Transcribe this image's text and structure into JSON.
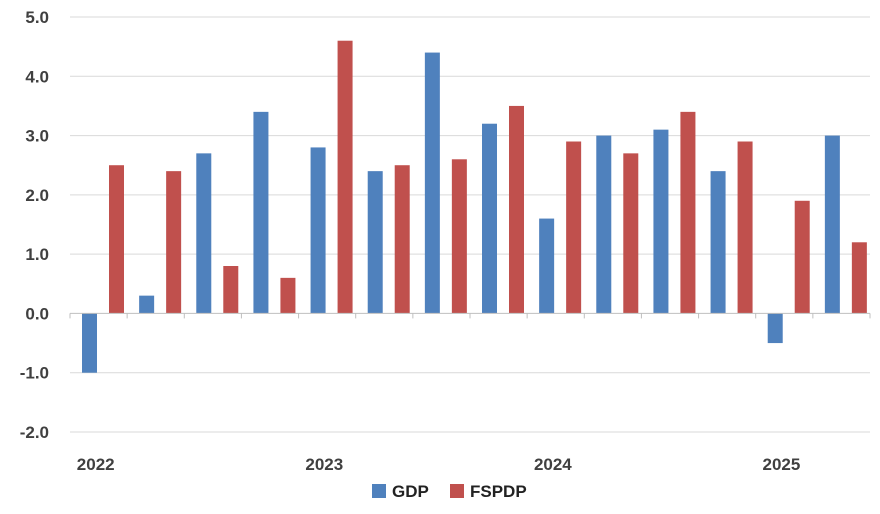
{
  "chart_data": {
    "type": "bar",
    "categories": [
      "2022 Q1",
      "2022 Q2",
      "2022 Q3",
      "2022 Q4",
      "2023 Q1",
      "2023 Q2",
      "2023 Q3",
      "2023 Q4",
      "2024 Q1",
      "2024 Q2",
      "2024 Q3",
      "2024 Q4",
      "2025 Q1",
      "2025 Q2"
    ],
    "x_tick_labels": [
      {
        "label": "2022",
        "category_index": 0
      },
      {
        "label": "2023",
        "category_index": 4
      },
      {
        "label": "2024",
        "category_index": 8
      },
      {
        "label": "2025",
        "category_index": 12
      }
    ],
    "series": [
      {
        "name": "GDP",
        "color": "#4f81bd",
        "values": [
          -1.0,
          0.3,
          2.7,
          3.4,
          2.8,
          2.4,
          4.4,
          3.2,
          1.6,
          3.0,
          3.1,
          2.4,
          -0.5,
          3.0
        ]
      },
      {
        "name": "FSPDP",
        "color": "#c0504d",
        "values": [
          2.5,
          2.4,
          0.8,
          0.6,
          4.6,
          2.5,
          2.6,
          3.5,
          2.9,
          2.7,
          3.4,
          2.9,
          1.9,
          1.2
        ]
      }
    ],
    "y_ticks": [
      "5.0",
      "4.0",
      "3.0",
      "2.0",
      "1.0",
      "0.0",
      "-1.0",
      "-2.0"
    ],
    "ylim": [
      -2.0,
      5.0
    ],
    "grid": true,
    "legend": "bottom-center",
    "title": "",
    "xlabel": "",
    "ylabel": ""
  }
}
